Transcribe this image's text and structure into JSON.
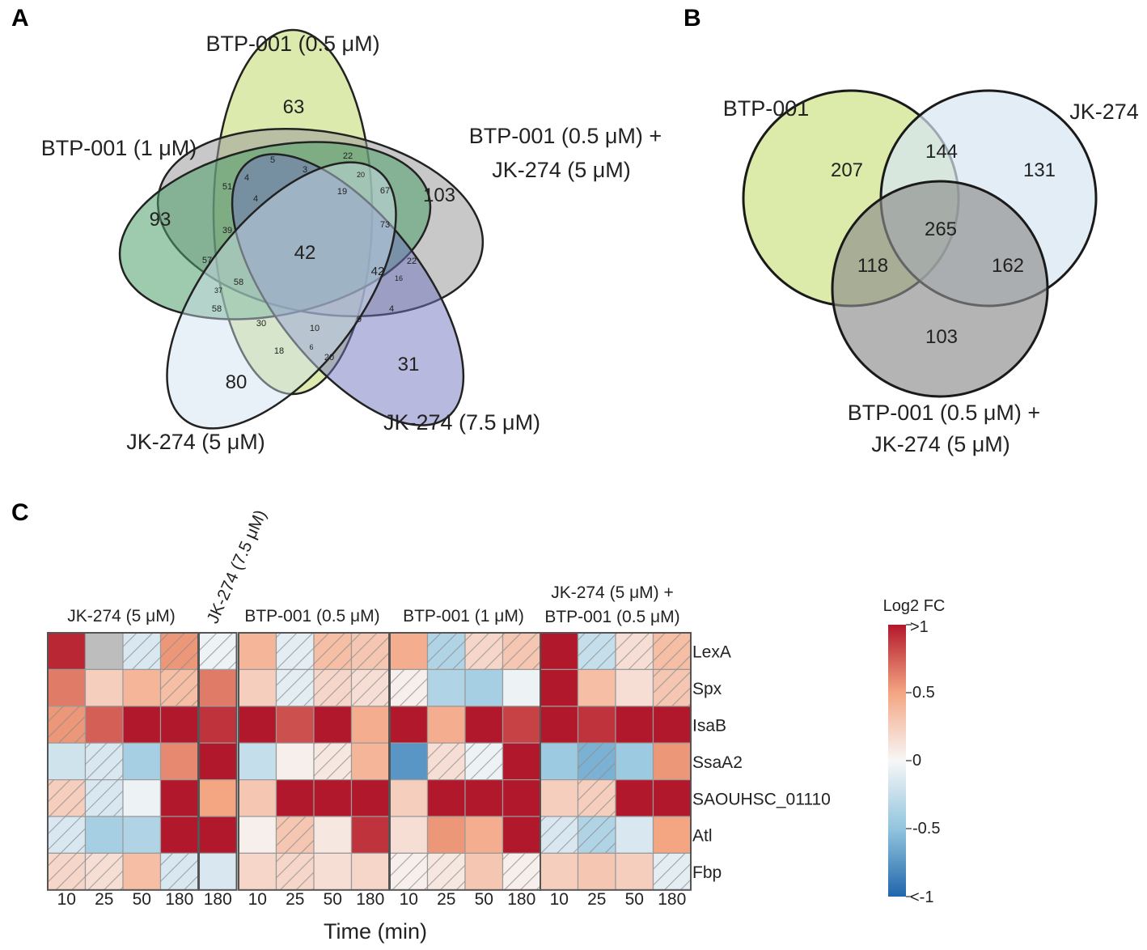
{
  "panels": {
    "a": "A",
    "b": "B",
    "c": "C"
  },
  "colors": {
    "btp_05": "#d3e59a",
    "btp_1": "#4f9e6c",
    "combo": "#9a9a9a",
    "jk_75": "#6f74bd",
    "jk_5": "#cfe0ef",
    "b_btp": "#d6e69b",
    "b_jk": "#d5e5f2",
    "b_combo": "#8c8c8c",
    "scale_neg": "#2166ac",
    "scale_zero": "#f7f7f7",
    "scale_pos": "#b2182b",
    "grey_cell": "#bdbdbd"
  },
  "chart_data": [
    {
      "type": "venn",
      "panel": "A",
      "sets": {
        "btp_05": "BTP-001 (0.5 μM)",
        "btp_1": "BTP-001 (1 μM)",
        "combo_line1": "BTP-001 (0.5 μM) +",
        "combo_line2": "JK-274 (5 μM)",
        "jk_75": "JK-274 (7.5 μM)",
        "jk_5": "JK-274 (5 μM)"
      },
      "unique": {
        "btp_05": 63,
        "btp_1": 93,
        "combo": 103,
        "jk_75": 31,
        "jk_5": 80
      },
      "center": 42,
      "regions": [
        5,
        3,
        22,
        20,
        4,
        51,
        19,
        67,
        4,
        39,
        73,
        57,
        58,
        42,
        22,
        16,
        37,
        58,
        4,
        30,
        10,
        9,
        18,
        6,
        20
      ]
    },
    {
      "type": "venn",
      "panel": "B",
      "sets": {
        "btp": "BTP-001",
        "jk": "JK-274",
        "combo_line1": "BTP-001 (0.5 μM) +",
        "combo_line2": "JK-274 (5 μM)"
      },
      "regions": {
        "btp_only": 207,
        "btp_jk": 144,
        "jk_only": 131,
        "all": 265,
        "btp_combo": 118,
        "jk_combo": 162,
        "combo_only": 103
      }
    },
    {
      "type": "heatmap",
      "panel": "C",
      "xlabel": "Time (min)",
      "colorbar": {
        "title": "Log2 FC",
        "range": [
          -1,
          1
        ],
        "ticks": [
          ">1",
          "0.5",
          "0",
          "-0.5",
          "<-1"
        ]
      },
      "genes": [
        "LexA",
        "Spx",
        "IsaB",
        "SsaA2",
        "SAOUHSC_01110",
        "Atl",
        "Fbp"
      ],
      "groups": [
        {
          "label": "JK-274 (5 μM)",
          "times": [
            "10",
            "25",
            "50",
            "180"
          ],
          "values": [
            [
              0.95,
              null,
              -0.15,
              0.55
            ],
            [
              0.65,
              0.25,
              0.4,
              0.35
            ],
            [
              0.55,
              0.75,
              1.0,
              1.0
            ],
            [
              -0.2,
              -0.15,
              -0.4,
              0.6
            ],
            [
              0.25,
              -0.15,
              -0.05,
              1.0
            ],
            [
              -0.15,
              -0.4,
              -0.35,
              1.0
            ],
            [
              0.2,
              0.15,
              0.35,
              -0.15
            ]
          ],
          "hatched": [
            [
              false,
              false,
              true,
              true
            ],
            [
              false,
              false,
              false,
              true
            ],
            [
              true,
              false,
              false,
              false
            ],
            [
              false,
              true,
              false,
              false
            ],
            [
              true,
              true,
              false,
              false
            ],
            [
              true,
              false,
              false,
              false
            ],
            [
              true,
              true,
              false,
              true
            ]
          ]
        },
        {
          "label": "JK-274 (7.5 μM)",
          "times": [
            "180"
          ],
          "values": [
            [
              -0.05
            ],
            [
              0.65
            ],
            [
              0.9
            ],
            [
              1.0
            ],
            [
              0.5
            ],
            [
              1.0
            ],
            [
              -0.15
            ]
          ],
          "hatched": [
            [
              true
            ],
            [
              false
            ],
            [
              false
            ],
            [
              false
            ],
            [
              false
            ],
            [
              false
            ],
            [
              false
            ]
          ]
        },
        {
          "label": "BTP-001 (0.5 μM)",
          "times": [
            "10",
            "25",
            "50",
            "180"
          ],
          "values": [
            [
              0.4,
              -0.1,
              0.35,
              0.3
            ],
            [
              0.25,
              -0.1,
              0.2,
              0.15
            ],
            [
              1.0,
              0.8,
              1.0,
              0.45
            ],
            [
              -0.25,
              0.05,
              0.1,
              0.4
            ],
            [
              0.3,
              1.0,
              1.0,
              1.0
            ],
            [
              0.05,
              0.3,
              0.1,
              0.9
            ],
            [
              0.2,
              0.2,
              0.15,
              0.2
            ]
          ],
          "hatched": [
            [
              false,
              true,
              true,
              true
            ],
            [
              false,
              true,
              true,
              true
            ],
            [
              false,
              false,
              false,
              false
            ],
            [
              false,
              false,
              true,
              false
            ],
            [
              false,
              false,
              false,
              false
            ],
            [
              false,
              true,
              false,
              false
            ],
            [
              false,
              true,
              false,
              false
            ]
          ]
        },
        {
          "label": "BTP-001 (1 μM)",
          "times": [
            "10",
            "25",
            "50",
            "180"
          ],
          "values": [
            [
              0.45,
              -0.35,
              0.2,
              0.3
            ],
            [
              0.05,
              -0.35,
              -0.4,
              -0.05
            ],
            [
              1.0,
              0.45,
              1.0,
              0.85
            ],
            [
              -0.75,
              0.15,
              -0.05,
              1.0
            ],
            [
              0.25,
              1.0,
              1.0,
              1.0
            ],
            [
              0.15,
              0.55,
              0.45,
              1.0
            ],
            [
              0.05,
              0.1,
              0.3,
              0.05
            ]
          ],
          "hatched": [
            [
              false,
              true,
              true,
              true
            ],
            [
              true,
              false,
              false,
              false
            ],
            [
              false,
              false,
              false,
              false
            ],
            [
              false,
              true,
              true,
              false
            ],
            [
              false,
              false,
              false,
              false
            ],
            [
              false,
              false,
              false,
              false
            ],
            [
              true,
              true,
              false,
              true
            ]
          ]
        },
        {
          "label_line1": "JK-274 (5 μM) +",
          "label_line2": "BTP-001 (0.5 μM)",
          "times": [
            "10",
            "25",
            "50",
            "180"
          ],
          "values": [
            [
              1.0,
              -0.25,
              0.15,
              0.35
            ],
            [
              1.0,
              0.35,
              0.15,
              0.3
            ],
            [
              1.0,
              0.9,
              1.0,
              1.0
            ],
            [
              -0.45,
              -0.6,
              -0.45,
              0.55
            ],
            [
              0.25,
              0.25,
              1.0,
              1.0
            ],
            [
              -0.15,
              -0.35,
              -0.15,
              0.5
            ],
            [
              0.25,
              0.3,
              0.25,
              -0.1
            ]
          ],
          "hatched": [
            [
              false,
              true,
              true,
              true
            ],
            [
              false,
              false,
              false,
              true
            ],
            [
              false,
              false,
              false,
              false
            ],
            [
              false,
              true,
              false,
              false
            ],
            [
              false,
              true,
              false,
              false
            ],
            [
              true,
              true,
              false,
              false
            ],
            [
              false,
              false,
              false,
              true
            ]
          ]
        }
      ]
    }
  ]
}
